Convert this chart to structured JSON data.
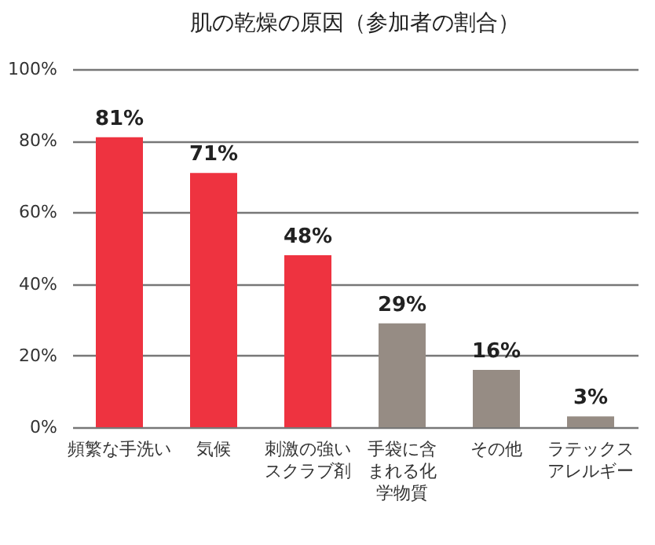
{
  "chart_data": {
    "type": "bar",
    "title": "肌の乾燥の原因（参加者の割合）",
    "categories": [
      "頻繁な手洗い",
      "気候",
      "刺激の強いスクラブ剤",
      "手袋に含まれる化学物質",
      "その他",
      "ラテックスアレルギー"
    ],
    "values": [
      81,
      71,
      48,
      29,
      16,
      3
    ],
    "value_labels": [
      "81%",
      "71%",
      "48%",
      "29%",
      "16%",
      "3%"
    ],
    "colors": [
      "#ee3340",
      "#ee3340",
      "#ee3340",
      "#968c84",
      "#968c84",
      "#968c84"
    ],
    "ylim": [
      0,
      100
    ],
    "yticks": [
      {
        "value": 0,
        "label": "0%"
      },
      {
        "value": 20,
        "label": "20%"
      },
      {
        "value": 40,
        "label": "40%"
      },
      {
        "value": 60,
        "label": "60%"
      },
      {
        "value": 80,
        "label": "80%"
      },
      {
        "value": 100,
        "label": "100%"
      }
    ],
    "grid": "y"
  }
}
